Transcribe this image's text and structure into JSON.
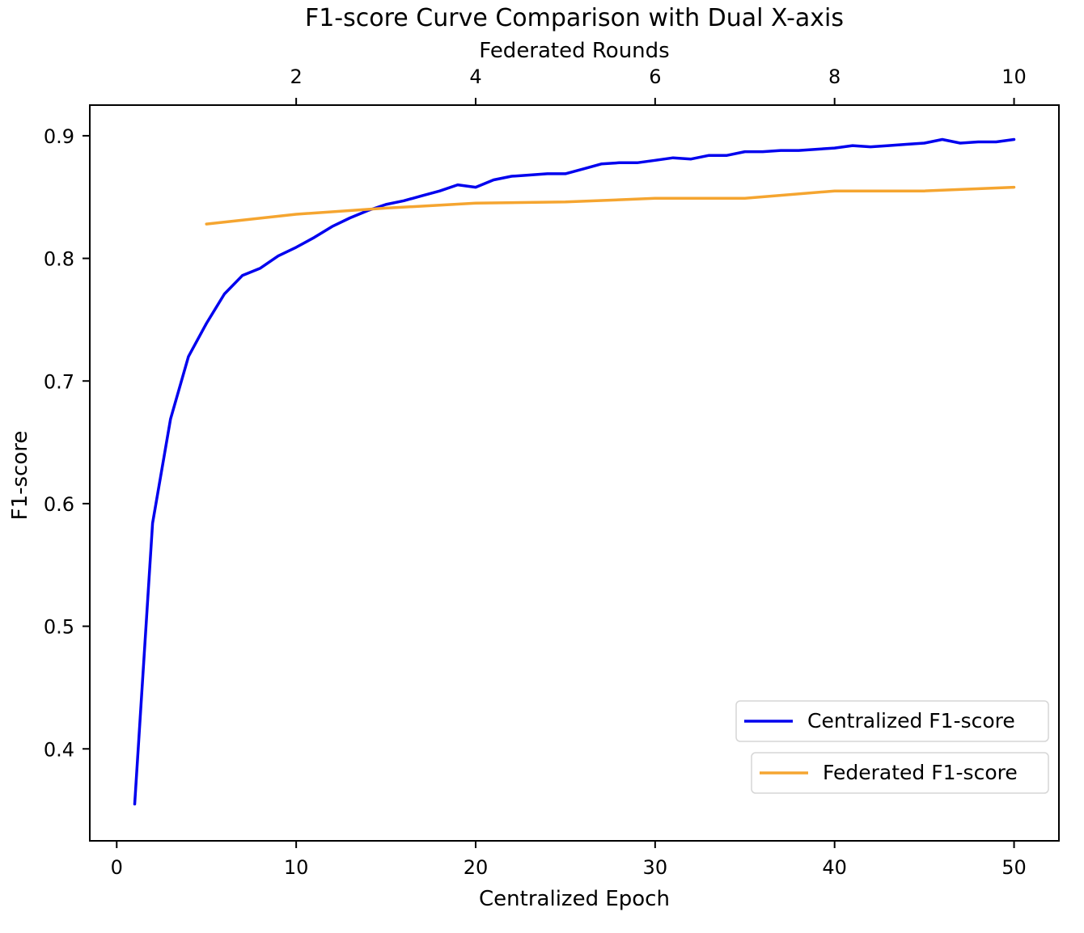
{
  "chart_data": {
    "type": "line",
    "title": "F1-score Curve Comparison with Dual X-axis",
    "xlabel": "Centralized Epoch",
    "x2label": "Federated Rounds",
    "ylabel": "F1-score",
    "xlim": [
      -1.5,
      52.5
    ],
    "ylim": [
      0.325,
      0.925
    ],
    "x2_ticks": [
      2,
      4,
      6,
      8,
      10
    ],
    "x2_tick_labels": [
      "2",
      "4",
      "6",
      "8",
      "10"
    ],
    "x_ticks": [
      0,
      10,
      20,
      30,
      40,
      50
    ],
    "x_tick_labels": [
      "0",
      "10",
      "20",
      "30",
      "40",
      "50"
    ],
    "y_ticks": [
      0.4,
      0.5,
      0.6,
      0.7,
      0.8,
      0.9
    ],
    "y_tick_labels": [
      "0.4",
      "0.5",
      "0.6",
      "0.7",
      "0.8",
      "0.9"
    ],
    "grid": false,
    "legend_position": "bottom-right",
    "series": [
      {
        "name": "Centralized F1-score",
        "color": "#0000ee",
        "axis": "bottom",
        "x": [
          1,
          2,
          3,
          4,
          5,
          6,
          7,
          8,
          9,
          10,
          11,
          12,
          13,
          14,
          15,
          16,
          17,
          18,
          19,
          20,
          21,
          22,
          23,
          24,
          25,
          26,
          27,
          28,
          29,
          30,
          31,
          32,
          33,
          34,
          35,
          36,
          37,
          38,
          39,
          40,
          41,
          42,
          43,
          44,
          45,
          46,
          47,
          48,
          49,
          50
        ],
        "y": [
          0.355,
          0.584,
          0.669,
          0.72,
          0.747,
          0.771,
          0.786,
          0.792,
          0.802,
          0.809,
          0.817,
          0.826,
          0.833,
          0.839,
          0.844,
          0.847,
          0.851,
          0.855,
          0.86,
          0.858,
          0.864,
          0.867,
          0.868,
          0.869,
          0.869,
          0.873,
          0.877,
          0.878,
          0.878,
          0.88,
          0.882,
          0.881,
          0.884,
          0.884,
          0.887,
          0.887,
          0.888,
          0.888,
          0.889,
          0.89,
          0.892,
          0.891,
          0.892,
          0.893,
          0.894,
          0.897,
          0.894,
          0.895,
          0.895,
          0.897
        ]
      },
      {
        "name": "Federated F1-score",
        "color": "#f5a530",
        "axis": "top",
        "x": [
          1,
          2,
          3,
          4,
          5,
          6,
          7,
          8,
          9,
          10
        ],
        "y": [
          0.828,
          0.836,
          0.841,
          0.845,
          0.846,
          0.849,
          0.849,
          0.855,
          0.855,
          0.858
        ]
      }
    ]
  }
}
